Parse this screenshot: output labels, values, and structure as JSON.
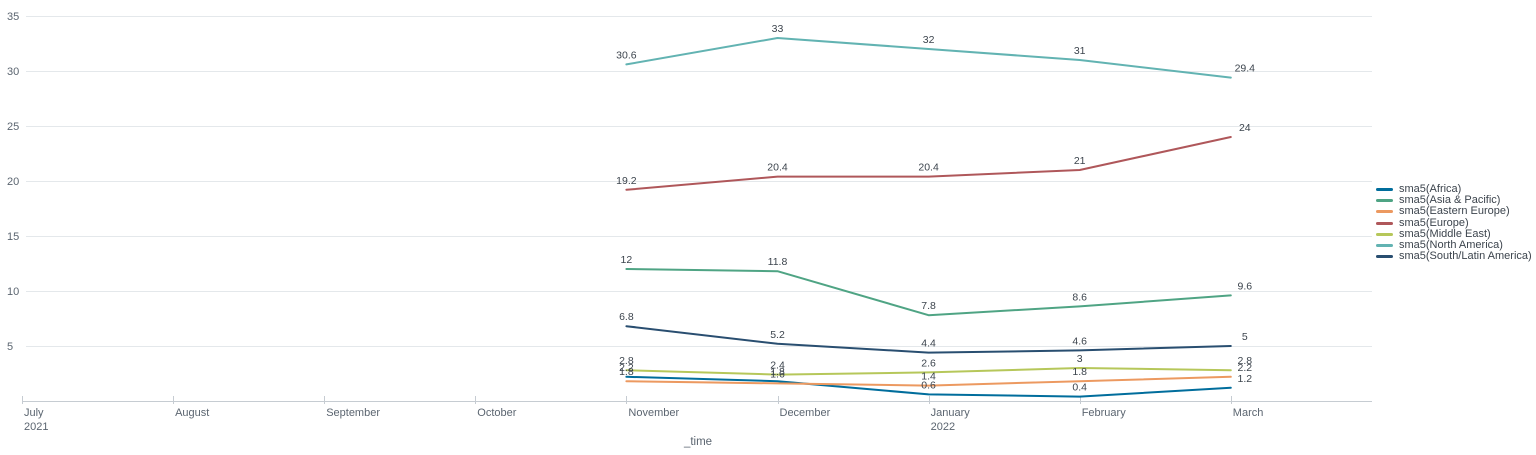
{
  "chart_data": {
    "type": "line",
    "title": "",
    "x_axis_title": "_time",
    "x_tick_labels": [
      [
        "July",
        "2021"
      ],
      [
        "August"
      ],
      [
        "September"
      ],
      [
        "October"
      ],
      [
        "November"
      ],
      [
        "December"
      ],
      [
        "January",
        "2022"
      ],
      [
        "February"
      ],
      [
        "March"
      ]
    ],
    "y_ticks": [
      5,
      10,
      15,
      20,
      25,
      30,
      35
    ],
    "ylim": [
      0,
      35
    ],
    "grid": "horizontal",
    "legend_position": "right",
    "data_start_index": 4,
    "series": [
      {
        "name": "sma5(Africa)",
        "color": "#006d9c",
        "values": [
          2.2,
          1.8,
          0.6,
          0.4,
          1.2
        ]
      },
      {
        "name": "sma5(Asia & Pacific)",
        "color": "#4fa484",
        "values": [
          12,
          11.8,
          7.8,
          8.6,
          9.6
        ]
      },
      {
        "name": "sma5(Eastern Europe)",
        "color": "#ec9960",
        "values": [
          1.8,
          1.6,
          1.4,
          1.8,
          2.2
        ]
      },
      {
        "name": "sma5(Europe)",
        "color": "#af575a",
        "values": [
          19.2,
          20.4,
          20.4,
          21,
          24
        ]
      },
      {
        "name": "sma5(Middle East)",
        "color": "#b6c75a",
        "values": [
          2.8,
          2.4,
          2.6,
          3,
          2.8
        ]
      },
      {
        "name": "sma5(North America)",
        "color": "#62b3b2",
        "values": [
          30.6,
          33,
          32,
          31,
          29.4
        ]
      },
      {
        "name": "sma5(South/Latin America)",
        "color": "#294e70",
        "values": [
          6.8,
          5.2,
          4.4,
          4.6,
          5
        ]
      }
    ],
    "colors": {
      "grid_line": "#e4e8eb",
      "axis_line": "#c6ccd2",
      "tick_label": "#5b6570",
      "data_label": "#3c444d"
    }
  }
}
